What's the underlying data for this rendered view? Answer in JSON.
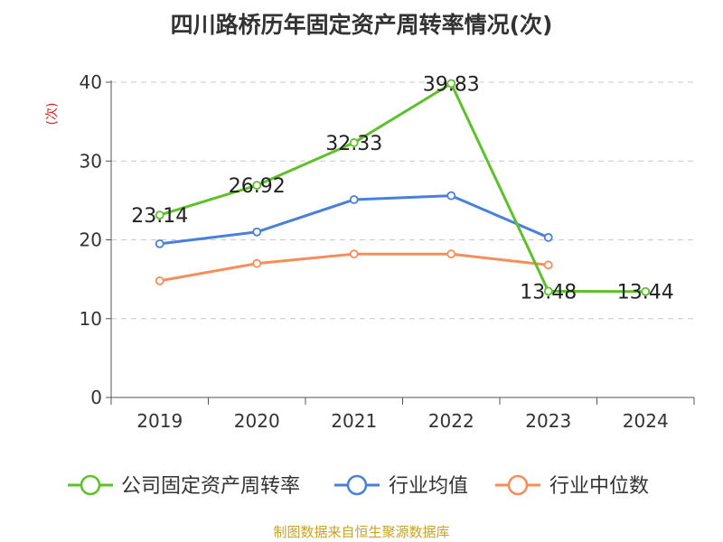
{
  "chart_data": {
    "type": "line",
    "title": "四川路桥历年固定资产周转率情况(次)",
    "ylabel": "(次)",
    "xlabel": "",
    "categories": [
      "2019",
      "2020",
      "2021",
      "2022",
      "2023",
      "2024"
    ],
    "ylim": [
      0,
      40
    ],
    "yticks": [
      0,
      10,
      20,
      30,
      40
    ],
    "grid": true,
    "legend_position": "bottom",
    "series": [
      {
        "name": "公司固定资产周转率",
        "color": "#5ec02a",
        "values": [
          23.14,
          26.92,
          32.33,
          39.83,
          13.48,
          13.44
        ],
        "labels": [
          "23.14",
          "26.92",
          "32.33",
          "39.83",
          "13.48",
          "13.44"
        ]
      },
      {
        "name": "行业均值",
        "color": "#4a7fdc",
        "values": [
          19.5,
          21.0,
          25.1,
          25.6,
          20.3,
          null
        ]
      },
      {
        "name": "行业中位数",
        "color": "#f58e5a",
        "values": [
          14.8,
          17.0,
          18.2,
          18.2,
          16.8,
          null
        ]
      }
    ]
  },
  "footer": {
    "source": "制图数据来自恒生聚源数据库"
  }
}
